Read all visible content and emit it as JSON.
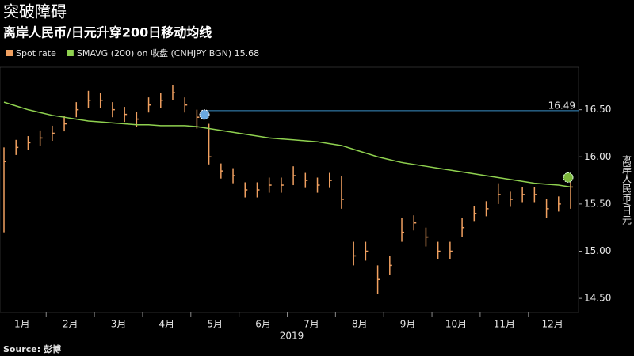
{
  "chart_data": {
    "type": "ohlc",
    "title": "突破障碍",
    "subtitle": "离岸人民币/日元升穿200日移动均线",
    "ylabel": "离岸人民币/日元",
    "xlabel": "2019",
    "source": "Source: 彭博",
    "categories": [
      null,
      "1月",
      null,
      null,
      null,
      "2月",
      null,
      null,
      null,
      "3月",
      null,
      null,
      null,
      "4月",
      null,
      null,
      null,
      "5月",
      null,
      null,
      null,
      "6月",
      null,
      null,
      null,
      "7月",
      null,
      null,
      null,
      "8月",
      null,
      null,
      null,
      "9月",
      null,
      null,
      null,
      "10月",
      null,
      null,
      null,
      "11月",
      null,
      null,
      null,
      "12月",
      null,
      null
    ],
    "ylim": [
      14.35,
      16.95
    ],
    "yticks": [
      {
        "value": 14.5,
        "label": "14.50"
      },
      {
        "value": 15,
        "label": "15.00"
      },
      {
        "value": 15.5,
        "label": "15.50"
      },
      {
        "value": 16,
        "label": "16.00"
      },
      {
        "value": 16.5,
        "label": "16.50"
      }
    ],
    "series": [
      {
        "name": "Spot rate",
        "color": "#f0a060",
        "values": [
          15.95,
          16.1,
          16.15,
          16.2,
          16.25,
          16.35,
          16.5,
          16.6,
          16.6,
          16.5,
          16.45,
          16.4,
          16.55,
          16.6,
          16.68,
          16.55,
          16.42,
          16.0,
          15.85,
          15.8,
          15.65,
          15.65,
          15.7,
          15.7,
          15.8,
          15.75,
          15.7,
          15.75,
          15.55,
          14.95,
          15.0,
          14.7,
          14.85,
          15.2,
          15.3,
          15.15,
          15.0,
          15.0,
          15.25,
          15.4,
          15.45,
          15.6,
          15.55,
          15.6,
          15.6,
          15.45,
          15.5,
          15.68
        ],
        "high": [
          16.1,
          16.18,
          16.22,
          16.28,
          16.33,
          16.43,
          16.58,
          16.7,
          16.68,
          16.58,
          16.53,
          16.48,
          16.63,
          16.68,
          16.76,
          16.63,
          16.5,
          16.35,
          15.93,
          15.88,
          15.73,
          15.73,
          15.78,
          15.78,
          15.9,
          15.83,
          15.78,
          15.83,
          15.8,
          15.1,
          15.1,
          14.85,
          14.95,
          15.35,
          15.38,
          15.25,
          15.1,
          15.1,
          15.35,
          15.48,
          15.53,
          15.72,
          15.63,
          15.68,
          15.68,
          15.55,
          15.58,
          15.75
        ],
        "low": [
          15.2,
          16.02,
          16.07,
          16.12,
          16.17,
          16.27,
          16.42,
          16.52,
          16.52,
          16.42,
          16.37,
          16.32,
          16.47,
          16.52,
          16.6,
          16.47,
          16.3,
          15.92,
          15.77,
          15.72,
          15.57,
          15.57,
          15.62,
          15.62,
          15.7,
          15.67,
          15.62,
          15.67,
          15.45,
          14.85,
          14.9,
          14.55,
          14.75,
          15.1,
          15.22,
          15.05,
          14.92,
          14.92,
          15.15,
          15.32,
          15.37,
          15.5,
          15.47,
          15.52,
          15.52,
          15.35,
          15.42,
          15.45
        ]
      },
      {
        "name": "SMAVG (200)  on 收盘 (CNHJPY BGN) 15.68",
        "color": "#8fd14f",
        "values": [
          16.58,
          16.54,
          16.5,
          16.47,
          16.44,
          16.42,
          16.4,
          16.38,
          16.37,
          16.36,
          16.35,
          16.34,
          16.34,
          16.33,
          16.33,
          16.33,
          16.32,
          16.3,
          16.28,
          16.26,
          16.24,
          16.22,
          16.2,
          16.19,
          16.18,
          16.17,
          16.16,
          16.14,
          16.12,
          16.08,
          16.04,
          16.0,
          15.97,
          15.94,
          15.92,
          15.9,
          15.88,
          15.86,
          15.84,
          15.82,
          15.8,
          15.78,
          15.76,
          15.74,
          15.72,
          15.71,
          15.7,
          15.68
        ]
      }
    ],
    "hline": 16.49
  }
}
